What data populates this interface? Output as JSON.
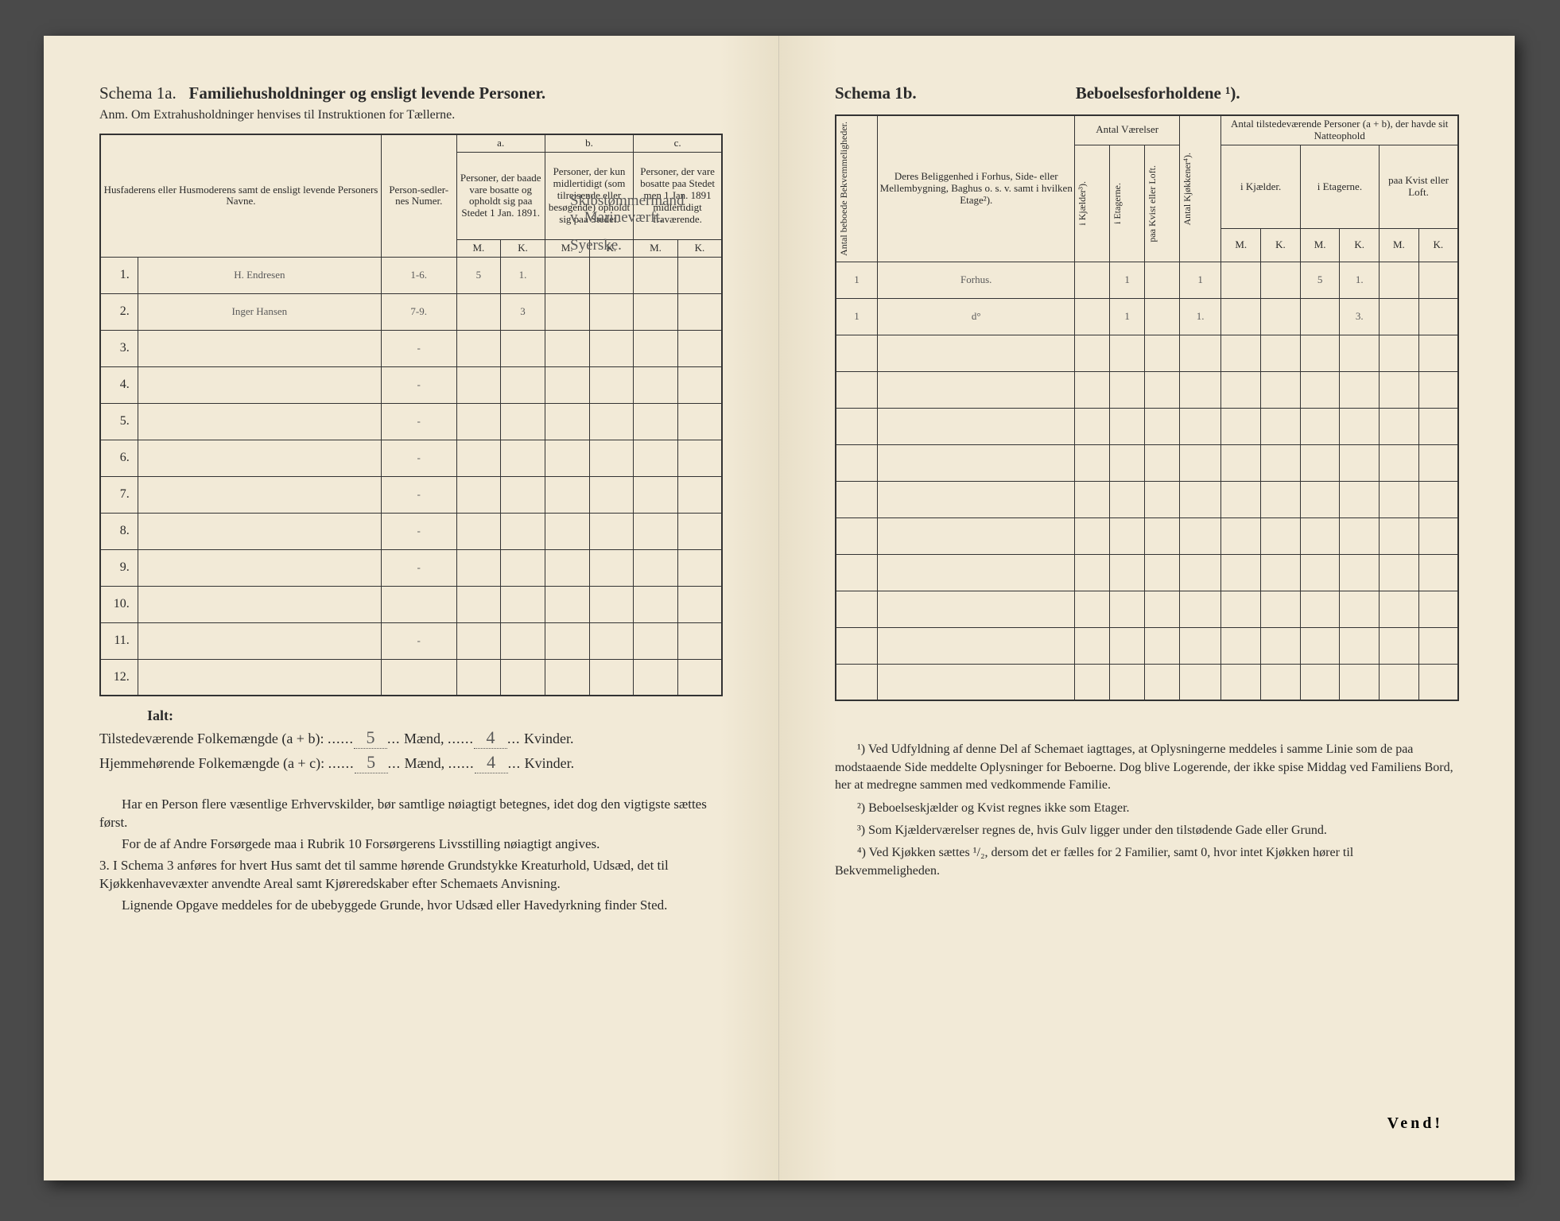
{
  "left": {
    "schema_label": "Schema 1a.",
    "schema_title": "Familiehusholdninger og ensligt levende Personer.",
    "anm": "Anm. Om Extrahusholdninger henvises til Instruktionen for Tællerne.",
    "headers": {
      "names": "Husfaderens eller Husmoderens samt de ensligt levende Personers Navne.",
      "person_num": "Person-sedler-nes Numer.",
      "a_label": "a.",
      "a_text": "Personer, der baade vare bosatte og opholdt sig paa Stedet 1 Jan. 1891.",
      "b_label": "b.",
      "b_text": "Personer, der kun midlertidigt (som tilreisende eller besøgende) opholdt sig paa Stedet.",
      "c_label": "c.",
      "c_text": "Personer, der vare bosatte paa Stedet men 1 Jan. 1891 midlertidigt fraværende.",
      "M": "M.",
      "K": "K."
    },
    "rows": [
      {
        "n": "1.",
        "name": "H. Endresen",
        "pn": "1-6.",
        "aM": "5",
        "aK": "1.",
        "bM": "",
        "bK": "",
        "cM": "",
        "cK": "",
        "occ": "Skibstømmermand v. Marineværft."
      },
      {
        "n": "2.",
        "name": "Inger Hansen",
        "pn": "7-9.",
        "aM": "",
        "aK": "3",
        "bM": "",
        "bK": "",
        "cM": "",
        "cK": "",
        "occ": "Syerske."
      },
      {
        "n": "3.",
        "name": "",
        "pn": "-",
        "aM": "",
        "aK": "",
        "bM": "",
        "bK": "",
        "cM": "",
        "cK": "",
        "occ": ""
      },
      {
        "n": "4.",
        "name": "",
        "pn": "-",
        "aM": "",
        "aK": "",
        "bM": "",
        "bK": "",
        "cM": "",
        "cK": "",
        "occ": ""
      },
      {
        "n": "5.",
        "name": "",
        "pn": "-",
        "aM": "",
        "aK": "",
        "bM": "",
        "bK": "",
        "cM": "",
        "cK": "",
        "occ": ""
      },
      {
        "n": "6.",
        "name": "",
        "pn": "-",
        "aM": "",
        "aK": "",
        "bM": "",
        "bK": "",
        "cM": "",
        "cK": "",
        "occ": ""
      },
      {
        "n": "7.",
        "name": "",
        "pn": "-",
        "aM": "",
        "aK": "",
        "bM": "",
        "bK": "",
        "cM": "",
        "cK": "",
        "occ": ""
      },
      {
        "n": "8.",
        "name": "",
        "pn": "-",
        "aM": "",
        "aK": "",
        "bM": "",
        "bK": "",
        "cM": "",
        "cK": "",
        "occ": ""
      },
      {
        "n": "9.",
        "name": "",
        "pn": "-",
        "aM": "",
        "aK": "",
        "bM": "",
        "bK": "",
        "cM": "",
        "cK": "",
        "occ": ""
      },
      {
        "n": "10.",
        "name": "",
        "pn": "",
        "aM": "",
        "aK": "",
        "bM": "",
        "bK": "",
        "cM": "",
        "cK": "",
        "occ": ""
      },
      {
        "n": "11.",
        "name": "",
        "pn": "-",
        "aM": "",
        "aK": "",
        "bM": "",
        "bK": "",
        "cM": "",
        "cK": "",
        "occ": ""
      },
      {
        "n": "12.",
        "name": "",
        "pn": "",
        "aM": "",
        "aK": "",
        "bM": "",
        "bK": "",
        "cM": "",
        "cK": "",
        "occ": ""
      }
    ],
    "totals": {
      "ialt": "Ialt:",
      "line1_label": "Tilstedeværende Folkemængde (a + b):",
      "line1_m": "5",
      "maend": "Mænd,",
      "line1_k": "4",
      "kvinder": "Kvinder.",
      "line2_label": "Hjemmehørende Folkemængde (a + c):",
      "line2_m": "5",
      "line2_k": "4"
    },
    "notes": {
      "p1": "Har en Person flere væsentlige Erhvervskilder, bør samtlige nøiagtigt betegnes, idet dog den vigtigste sættes først.",
      "p2": "For de af Andre Forsørgede maa i Rubrik 10 Forsørgerens Livsstilling nøiagtigt angives.",
      "p3": "3. I Schema 3 anføres for hvert Hus samt det til samme hørende Grundstykke Kreaturhold, Udsæd, det til Kjøkkenhavevæxter anvendte Areal samt Kjøreredskaber efter Schemaets Anvisning.",
      "p4": "Lignende Opgave meddeles for de ubebyggede Grunde, hvor Udsæd eller Havedyrkning finder Sted."
    }
  },
  "right": {
    "schema_label": "Schema 1b.",
    "schema_title": "Beboelsesforholdene ¹).",
    "headers": {
      "antal_beboede": "Antal beboede Bekvemmeligheder.",
      "beliggenhed": "Deres Beliggenhed i Forhus, Side- eller Mellembygning, Baghus o. s. v. samt i hvilken Etage²).",
      "antal_vaerelser": "Antal Værelser",
      "i_kjaelder": "i Kjælder³).",
      "i_etagerne": "i Etagerne.",
      "paa_kvist": "paa Kvist eller Loft.",
      "antal_kjokkener": "Antal Kjøkkener⁴).",
      "antal_personer": "Antal tilstedeværende Personer (a + b), der havde sit Natteophold",
      "i_kjael": "i Kjælder.",
      "i_etag": "i Etagerne.",
      "paa_kvist2": "paa Kvist eller Loft.",
      "M": "M.",
      "K": "K."
    },
    "rows": [
      {
        "ab": "1",
        "bel": "Forhus.",
        "kj": "",
        "et": "1",
        "kv": "",
        "kk": "1",
        "kjM": "",
        "kjK": "",
        "etM": "5",
        "etK": "1.",
        "kvM": "",
        "kvK": ""
      },
      {
        "ab": "1",
        "bel": "d°",
        "kj": "",
        "et": "1",
        "kv": "",
        "kk": "1.",
        "kjM": "",
        "kjK": "",
        "etM": "",
        "etK": "3.",
        "kvM": "",
        "kvK": ""
      },
      {
        "ab": "",
        "bel": "",
        "kj": "",
        "et": "",
        "kv": "",
        "kk": "",
        "kjM": "",
        "kjK": "",
        "etM": "",
        "etK": "",
        "kvM": "",
        "kvK": ""
      },
      {
        "ab": "",
        "bel": "",
        "kj": "",
        "et": "",
        "kv": "",
        "kk": "",
        "kjM": "",
        "kjK": "",
        "etM": "",
        "etK": "",
        "kvM": "",
        "kvK": ""
      },
      {
        "ab": "",
        "bel": "",
        "kj": "",
        "et": "",
        "kv": "",
        "kk": "",
        "kjM": "",
        "kjK": "",
        "etM": "",
        "etK": "",
        "kvM": "",
        "kvK": ""
      },
      {
        "ab": "",
        "bel": "",
        "kj": "",
        "et": "",
        "kv": "",
        "kk": "",
        "kjM": "",
        "kjK": "",
        "etM": "",
        "etK": "",
        "kvM": "",
        "kvK": ""
      },
      {
        "ab": "",
        "bel": "",
        "kj": "",
        "et": "",
        "kv": "",
        "kk": "",
        "kjM": "",
        "kjK": "",
        "etM": "",
        "etK": "",
        "kvM": "",
        "kvK": ""
      },
      {
        "ab": "",
        "bel": "",
        "kj": "",
        "et": "",
        "kv": "",
        "kk": "",
        "kjM": "",
        "kjK": "",
        "etM": "",
        "etK": "",
        "kvM": "",
        "kvK": ""
      },
      {
        "ab": "",
        "bel": "",
        "kj": "",
        "et": "",
        "kv": "",
        "kk": "",
        "kjM": "",
        "kjK": "",
        "etM": "",
        "etK": "",
        "kvM": "",
        "kvK": ""
      },
      {
        "ab": "",
        "bel": "",
        "kj": "",
        "et": "",
        "kv": "",
        "kk": "",
        "kjM": "",
        "kjK": "",
        "etM": "",
        "etK": "",
        "kvM": "",
        "kvK": ""
      },
      {
        "ab": "",
        "bel": "",
        "kj": "",
        "et": "",
        "kv": "",
        "kk": "",
        "kjM": "",
        "kjK": "",
        "etM": "",
        "etK": "",
        "kvM": "",
        "kvK": ""
      },
      {
        "ab": "",
        "bel": "",
        "kj": "",
        "et": "",
        "kv": "",
        "kk": "",
        "kjM": "",
        "kjK": "",
        "etM": "",
        "etK": "",
        "kvM": "",
        "kvK": ""
      }
    ],
    "notes": {
      "n1": "¹) Ved Udfyldning af denne Del af Schemaet iagttages, at Oplysningerne meddeles i samme Linie som de paa modstaaende Side meddelte Oplysninger for Beboerne. Dog blive Logerende, der ikke spise Middag ved Familiens Bord, her at medregne sammen med vedkommende Familie.",
      "n2": "²) Beboelseskjælder og Kvist regnes ikke som Etager.",
      "n3": "³) Som Kjælderværelser regnes de, hvis Gulv ligger under den tilstødende Gade eller Grund.",
      "n4": "⁴) Ved Kjøkken sættes ¹/₂, dersom det er fælles for 2 Familier, samt 0, hvor intet Kjøkken hører til Bekvemmeligheden."
    },
    "vend": "Vend!"
  },
  "colors": {
    "paper": "#f2ead7",
    "ink": "#2a2a2a",
    "handwriting": "#5a5a5a",
    "border": "#333333"
  }
}
